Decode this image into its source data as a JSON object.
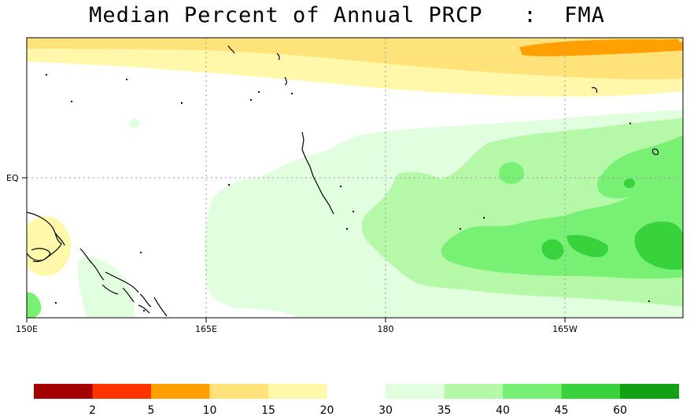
{
  "title": "Median Percent of Annual PRCP   :  FMA",
  "map": {
    "lon_labels": [
      "150E",
      "165E",
      "180",
      "165W"
    ],
    "lat_labels": [
      "EQ"
    ],
    "grid": "dotted"
  },
  "legend": {
    "colors": [
      "#a50000",
      "#ff3300",
      "#ffa000",
      "#ffe27a",
      "#fff8aa",
      "#ffffff",
      "#e1ffdf",
      "#b4f8a8",
      "#78f073",
      "#37d23c",
      "#14a014"
    ],
    "labels": [
      "2",
      "5",
      "10",
      "15",
      "20",
      "30",
      "35",
      "40",
      "45",
      "60"
    ]
  }
}
